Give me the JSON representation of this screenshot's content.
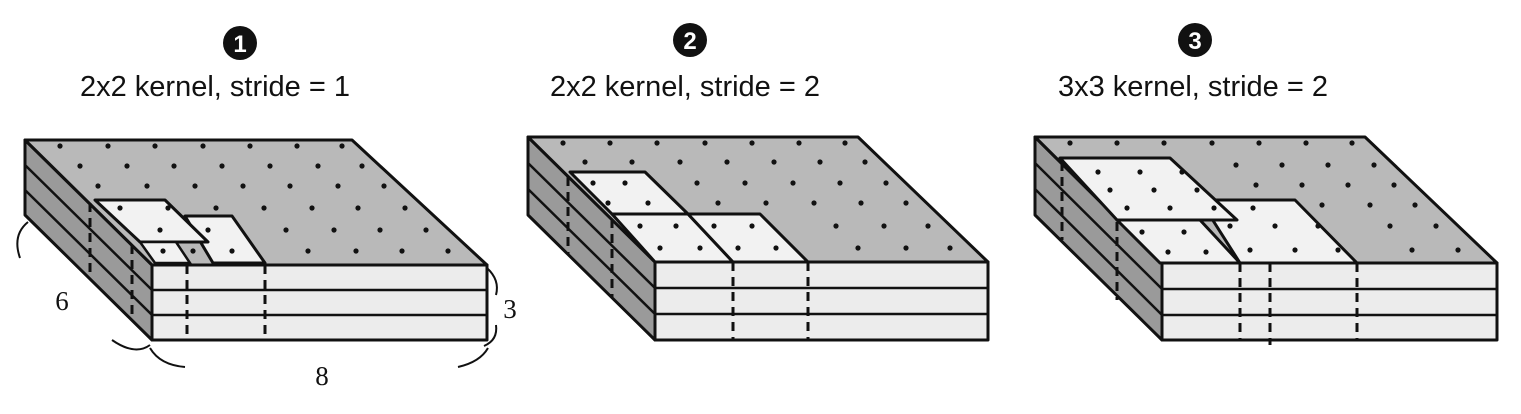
{
  "panels": [
    {
      "number": "1",
      "label": "2x2 kernel, stride = 1"
    },
    {
      "number": "2",
      "label": "2x2 kernel, stride = 2"
    },
    {
      "number": "3",
      "label": "3x3 kernel, stride = 2"
    }
  ],
  "dimensions": {
    "height": "6",
    "depth": "3",
    "width": "8"
  },
  "colors": {
    "top_face": "#b9b9b9",
    "kernel_face": "#f2f2f2",
    "front_face": "#ececec",
    "side_face": "#9a9a9a",
    "ink": "#111111"
  }
}
